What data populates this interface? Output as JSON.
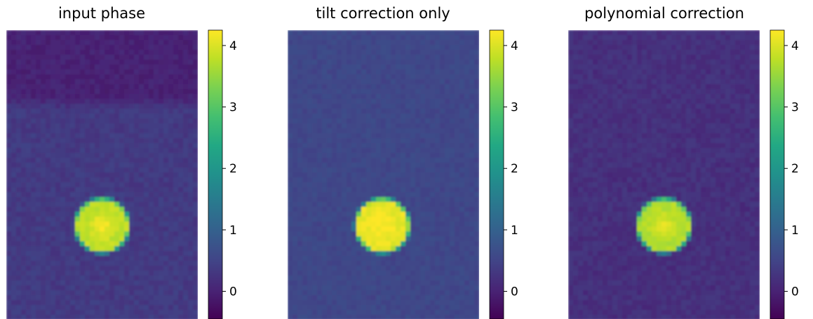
{
  "chart_data": [
    {
      "type": "heatmap",
      "title": "input phase",
      "colormap": "viridis",
      "clim": [
        -0.45,
        4.25
      ],
      "colorbar_ticks": [
        0,
        1,
        2,
        3,
        4
      ],
      "colorbar_tick_labels": [
        "0",
        "1",
        "2",
        "3",
        "4"
      ],
      "background_level": 0.35,
      "top_band_level": 0.0,
      "top_band_fraction": 0.23,
      "spot": {
        "center": [
          0.5,
          0.675
        ],
        "radius": 0.138,
        "level": 3.8,
        "peak": 4.25
      },
      "noise": 0.12
    },
    {
      "type": "heatmap",
      "title": "tilt correction only",
      "colormap": "viridis",
      "clim": [
        -0.45,
        4.25
      ],
      "colorbar_ticks": [
        0,
        1,
        2,
        3,
        4
      ],
      "colorbar_tick_labels": [
        "0",
        "1",
        "2",
        "3",
        "4"
      ],
      "background_level": 0.55,
      "top_band_level": 0.55,
      "top_band_fraction": 0.0,
      "spot": {
        "center": [
          0.495,
          0.675
        ],
        "radius": 0.138,
        "level": 4.1,
        "peak": 4.3
      },
      "noise": 0.1
    },
    {
      "type": "heatmap",
      "title": "polynomial correction",
      "colormap": "viridis",
      "clim": [
        -0.45,
        4.25
      ],
      "colorbar_ticks": [
        0,
        1,
        2,
        3,
        4
      ],
      "colorbar_tick_labels": [
        "0",
        "1",
        "2",
        "3",
        "4"
      ],
      "background_level": 0.2,
      "top_band_level": 0.2,
      "top_band_fraction": 0.0,
      "spot": {
        "center": [
          0.5,
          0.675
        ],
        "radius": 0.138,
        "level": 3.7,
        "peak": 4.1
      },
      "noise": 0.12
    }
  ]
}
